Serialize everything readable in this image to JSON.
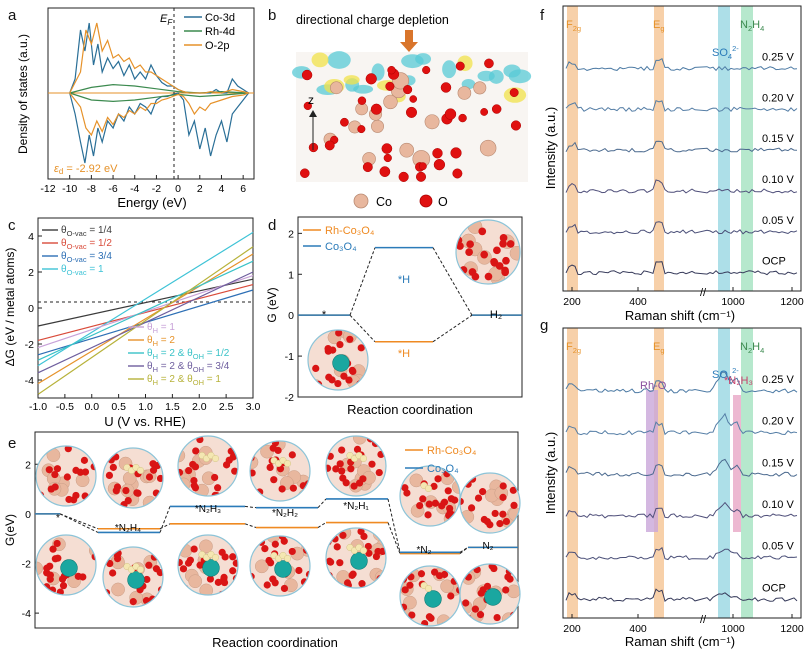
{
  "figure": {
    "panel_labels": [
      "a",
      "b",
      "c",
      "d",
      "e",
      "f",
      "g"
    ],
    "colors": {
      "co": "#2a6f97",
      "rh": "#3c8a4f",
      "o": "#e6922a",
      "blue": "#2b7bb9",
      "orange": "#ef8a22",
      "axis": "#222222",
      "c1": "#3b3b3b",
      "c2": "#d94b3a",
      "c3": "#2d6fb5",
      "c4": "#3ec3d6",
      "c5": "#c8a2d8",
      "c6": "#e6922a",
      "c7": "#39c2c7",
      "c8": "#6e5e9e",
      "c9": "#b7b23a"
    }
  },
  "chart_data": [
    {
      "panel": "a",
      "type": "line",
      "title": "",
      "xlabel": "Energy (eV)",
      "ylabel": "Density of states (a.u.)",
      "xlim": [
        -12,
        7
      ],
      "xticks": [
        "-12",
        "-10",
        "-8",
        "-6",
        "-4",
        "-2",
        "0",
        "2",
        "4",
        "6"
      ],
      "fermi_label": "E",
      "fermi_sub": "F",
      "annotation": "-2.92 eV",
      "annotation_sym": "ε",
      "annotation_sub": "d",
      "series": [
        {
          "name": "Co-3d",
          "x": [
            -10,
            -9.5,
            -9,
            -8.6,
            -8.2,
            -7.8,
            -7.4,
            -7,
            -6.5,
            -6,
            -5.5,
            -5,
            -4.5,
            -4,
            -3.5,
            -3,
            -2.5,
            -2,
            -1.5,
            -1,
            -0.5,
            0,
            0.5,
            1,
            1.5,
            2,
            2.5,
            3,
            3.5,
            4,
            4.5,
            5,
            5.5,
            6,
            6.5
          ],
          "up": [
            0,
            0.2,
            0.9,
            0.6,
            1.0,
            0.4,
            0.7,
            0.3,
            0.5,
            0.35,
            0.45,
            0.25,
            0.4,
            0.2,
            0.3,
            0.2,
            0.4,
            0.25,
            0.15,
            0.1,
            0.1,
            0.05,
            0.02,
            0,
            0,
            0,
            0,
            0,
            0.05,
            0,
            0,
            0.2,
            0.1,
            0.05,
            0
          ],
          "down": [
            0,
            -0.3,
            -0.7,
            -1.0,
            -0.6,
            -0.9,
            -0.5,
            -0.7,
            -0.4,
            -0.5,
            -0.3,
            -0.4,
            -0.2,
            -0.3,
            -0.15,
            -0.2,
            -0.3,
            -0.1,
            -0.05,
            -0.05,
            -0.02,
            0,
            -0.1,
            -0.6,
            -0.4,
            -0.8,
            -0.5,
            -0.9,
            -0.6,
            -0.4,
            -0.7,
            -0.3,
            -0.2,
            -0.1,
            0
          ]
        },
        {
          "name": "Rh-4d",
          "x": [
            -10,
            -8,
            -6,
            -4,
            -2,
            0,
            2,
            4,
            6.5
          ],
          "up": [
            0,
            0.08,
            0.12,
            0.1,
            0.06,
            0.02,
            0,
            0.02,
            0
          ],
          "down": [
            0,
            -0.1,
            -0.12,
            -0.1,
            -0.06,
            -0.02,
            -0.05,
            -0.03,
            0
          ]
        },
        {
          "name": "O-2p",
          "x": [
            -10,
            -9,
            -8.5,
            -8,
            -7.5,
            -7,
            -6.5,
            -6,
            -5.5,
            -5,
            -4.5,
            -4,
            -3.5,
            -3,
            -2.5,
            -2,
            -1.5,
            -1,
            -0.5,
            0,
            0.5,
            1,
            1.5,
            2,
            2.5,
            3,
            4,
            5,
            6,
            6.5
          ],
          "up": [
            0,
            0.3,
            0.9,
            0.7,
            1.0,
            0.6,
            0.75,
            0.5,
            0.55,
            0.45,
            0.5,
            0.35,
            0.4,
            0.3,
            0.3,
            0.25,
            0.2,
            0.15,
            0.1,
            0.05,
            0.02,
            0,
            0,
            0,
            0,
            0.02,
            0,
            0.05,
            0.02,
            0
          ],
          "down": [
            0,
            -0.2,
            -0.5,
            -0.6,
            -0.4,
            -0.55,
            -0.35,
            -0.45,
            -0.3,
            -0.35,
            -0.25,
            -0.3,
            -0.2,
            -0.25,
            -0.15,
            -0.15,
            -0.1,
            -0.08,
            -0.05,
            -0.02,
            -0.05,
            -0.15,
            -0.3,
            -0.2,
            -0.25,
            -0.15,
            -0.1,
            -0.05,
            -0.03,
            0
          ]
        }
      ]
    },
    {
      "panel": "c",
      "type": "line",
      "xlabel": "U (V vs. RHE)",
      "ylabel": "ΔG (eV / metal atoms)",
      "xlim": [
        -1.0,
        3.0
      ],
      "ylim": [
        -5,
        5
      ],
      "xticks": [
        "-1.0",
        "-0.5",
        "0.0",
        "0.5",
        "1.0",
        "1.5",
        "2.0",
        "2.5",
        "3.0"
      ],
      "yticks": [
        "-4",
        "-2",
        "0",
        "2",
        "4"
      ],
      "legend_top": [
        {
          "sym": "θ",
          "sub": "O-vac",
          "val": " = 1/4"
        },
        {
          "sym": "θ",
          "sub": "O-vac",
          "val": " = 1/2"
        },
        {
          "sym": "θ",
          "sub": "O-vac",
          "val": " = 3/4"
        },
        {
          "sym": "θ",
          "sub": "O-vac",
          "val": " = 1"
        }
      ],
      "legend_bottom": [
        {
          "text": "θ",
          "sub": "H",
          "rest": " = 1",
          "sub2": "",
          "rest2": ""
        },
        {
          "text": "θ",
          "sub": "H",
          "rest": " = 2",
          "sub2": "",
          "rest2": ""
        },
        {
          "text": "θ",
          "sub": "H",
          "rest": " = 2 & θ",
          "sub2": "OH",
          "rest2": " = 1/2"
        },
        {
          "text": "θ",
          "sub": "H",
          "rest": " = 2 & θ",
          "sub2": "OH",
          "rest2": " = 3/4"
        },
        {
          "text": "θ",
          "sub": "H",
          "rest": " = 2 & θ",
          "sub2": "OH",
          "rest2": " = 1"
        }
      ],
      "series": [
        {
          "name": "θO-vac=1/4",
          "x": [
            -1,
            3
          ],
          "y": [
            -1.0,
            1.6
          ]
        },
        {
          "name": "θO-vac=1/2",
          "x": [
            -1,
            3
          ],
          "y": [
            -1.8,
            1.3
          ]
        },
        {
          "name": "θO-vac=3/4",
          "x": [
            -1,
            3
          ],
          "y": [
            -2.6,
            1.0
          ]
        },
        {
          "name": "θO-vac=1",
          "x": [
            -1,
            3
          ],
          "y": [
            -3.2,
            4.2
          ]
        },
        {
          "name": "θH=1",
          "x": [
            -1,
            3
          ],
          "y": [
            -2.2,
            1.8
          ]
        },
        {
          "name": "θH=2",
          "x": [
            -1,
            3
          ],
          "y": [
            -4.2,
            3.0
          ]
        },
        {
          "name": "θH=2&θOH=1/2",
          "x": [
            -1,
            3
          ],
          "y": [
            -2.9,
            2.6
          ]
        },
        {
          "name": "θH=2&θOH=3/4",
          "x": [
            -1,
            3
          ],
          "y": [
            -3.6,
            2.0
          ]
        },
        {
          "name": "θH=2&θOH=1",
          "x": [
            -1,
            3
          ],
          "y": [
            -4.8,
            3.4
          ]
        }
      ]
    },
    {
      "panel": "d",
      "type": "line",
      "xlabel": "Reaction coordination",
      "ylabel": "G (eV)",
      "ylim": [
        -2,
        2.4
      ],
      "yticks": [
        "-2",
        "-1",
        "0",
        "1",
        "2"
      ],
      "legend": [
        "Rh-Co₃O₄",
        "Co₃O₄"
      ],
      "steps": [
        "*",
        "*H",
        "H₂"
      ],
      "series": [
        {
          "name": "Rh-Co3O4",
          "values": [
            0,
            -0.65,
            0
          ]
        },
        {
          "name": "Co3O4",
          "values": [
            0,
            1.65,
            0
          ]
        }
      ]
    },
    {
      "panel": "e",
      "type": "line",
      "xlabel": "Reaction coordination",
      "ylabel": "G(eV)",
      "ylim": [
        -4.6,
        3.3
      ],
      "yticks": [
        "-4",
        "-2",
        "0",
        "2"
      ],
      "legend": [
        "Rh-Co₃O₄",
        "Co₃O₄"
      ],
      "steps": [
        "*",
        "*N₂H₄",
        "*N₂H₃",
        "*N₂H₂",
        "*N₂H₁",
        "*N₂",
        "N₂"
      ],
      "series": [
        {
          "name": "Rh-Co3O4",
          "values": [
            0,
            -0.6,
            -0.4,
            -0.55,
            -0.35,
            -1.6,
            -1.35
          ]
        },
        {
          "name": "Co3O4",
          "values": [
            0,
            -0.75,
            0.3,
            0.25,
            0.6,
            -1.55,
            -1.35
          ]
        }
      ]
    },
    {
      "panel": "f",
      "type": "line",
      "xlabel": "Raman shift (cm⁻¹)",
      "ylabel": "Intensity (a.u.)",
      "xticks": [
        "200",
        "400",
        "1000",
        "1200"
      ],
      "band_labels": [
        {
          "main": "F",
          "sub": "2g",
          "sup": ""
        },
        {
          "main": "E",
          "sub": "g",
          "sup": ""
        },
        {
          "main": "SO",
          "sub": "4",
          "sup": "2-"
        },
        {
          "main": "N",
          "sub": "2",
          "mid": "H",
          "sub2": "4",
          "sup": ""
        }
      ],
      "potentials": [
        "0.25 V",
        "0.20 V",
        "0.15 V",
        "0.10 V",
        "0.05 V",
        "OCP"
      ]
    },
    {
      "panel": "g",
      "type": "line",
      "xlabel": "Raman shift (cm⁻¹)",
      "ylabel": "Intensity (a.u.)",
      "xticks": [
        "200",
        "400",
        "1000",
        "1200"
      ],
      "band_labels": [
        {
          "main": "F",
          "sub": "2g"
        },
        {
          "main": "E",
          "sub": "g"
        },
        {
          "main": "SO",
          "sub": "4",
          "sup": "2-"
        },
        {
          "main": "N",
          "sub": "2",
          "mid": "H",
          "sub2": "4"
        }
      ],
      "extra_labels": [
        "Rh-O",
        "*N₂H₃"
      ],
      "potentials": [
        "0.25 V",
        "0.20 V",
        "0.15 V",
        "0.10 V",
        "0.05 V",
        "OCP"
      ]
    }
  ],
  "panel_b": {
    "heading": "directional charge depletion",
    "axis_label": "z",
    "legend": [
      "Co",
      "O"
    ]
  }
}
